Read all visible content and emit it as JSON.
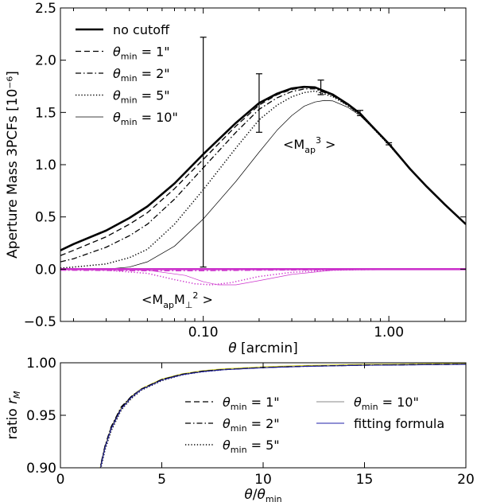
{
  "chart_data": [
    {
      "type": "line",
      "xscale": "log",
      "xlim": [
        0.017,
        2.6
      ],
      "ylim": [
        -0.5,
        2.5
      ],
      "xlabel": "θ [arcmin]",
      "ylabel": "Aperture Mass 3PCFs [10⁻⁶]",
      "xticks": [
        {
          "value": 0.1,
          "label": "0.10"
        },
        {
          "value": 1.0,
          "label": "1.00"
        }
      ],
      "yticks": [
        {
          "value": -0.5,
          "label": "−0.5"
        },
        {
          "value": 0.0,
          "label": "0.0"
        },
        {
          "value": 0.5,
          "label": "0.5"
        },
        {
          "value": 1.0,
          "label": "1.0"
        },
        {
          "value": 1.5,
          "label": "1.5"
        },
        {
          "value": 2.0,
          "label": "2.0"
        },
        {
          "value": 2.5,
          "label": "2.5"
        }
      ],
      "legend_position": "top-left",
      "legend": [
        {
          "text": "no cutoff",
          "style": "thick"
        },
        {
          "text": "θmin = 1\"",
          "style": "dashed"
        },
        {
          "text": "θmin = 2\"",
          "style": "dashdot"
        },
        {
          "text": "θmin = 5\"",
          "style": "dotted"
        },
        {
          "text": "θmin = 10\"",
          "style": "thin"
        }
      ],
      "annotations": {
        "map3": "<Map3>",
        "mapmperp": "<MapM⊥2>"
      },
      "colors": {
        "e_mode": "#000000",
        "b_mode": "#cc33cc"
      },
      "series": [
        {
          "name": "no cutoff",
          "group": "Map3",
          "style": "thick",
          "x": [
            0.017,
            0.02,
            0.03,
            0.04,
            0.05,
            0.07,
            0.1,
            0.15,
            0.2,
            0.25,
            0.3,
            0.35,
            0.4,
            0.5,
            0.6,
            0.7,
            0.8,
            1.0,
            1.3,
            1.6,
            2.0,
            2.6
          ],
          "y": [
            0.18,
            0.24,
            0.37,
            0.49,
            0.6,
            0.82,
            1.1,
            1.4,
            1.59,
            1.68,
            1.73,
            1.745,
            1.74,
            1.67,
            1.58,
            1.49,
            1.38,
            1.2,
            0.96,
            0.79,
            0.62,
            0.43
          ]
        },
        {
          "name": "θmin = 1\"",
          "group": "Map3",
          "style": "dashed",
          "x": [
            0.017,
            0.02,
            0.03,
            0.04,
            0.05,
            0.07,
            0.1,
            0.15,
            0.2,
            0.25,
            0.3,
            0.35,
            0.4,
            0.5,
            0.6,
            0.7,
            0.8,
            1.0,
            1.3,
            1.6,
            2.0,
            2.6
          ],
          "y": [
            0.13,
            0.18,
            0.31,
            0.43,
            0.54,
            0.77,
            1.05,
            1.37,
            1.57,
            1.67,
            1.72,
            1.74,
            1.735,
            1.665,
            1.575,
            1.485,
            1.38,
            1.2,
            0.96,
            0.79,
            0.62,
            0.43
          ]
        },
        {
          "name": "θmin = 2\"",
          "group": "Map3",
          "style": "dashdot",
          "x": [
            0.017,
            0.02,
            0.03,
            0.04,
            0.05,
            0.07,
            0.1,
            0.15,
            0.2,
            0.25,
            0.3,
            0.35,
            0.4,
            0.5,
            0.6,
            0.7,
            0.8,
            1.0,
            1.3,
            1.6,
            2.0,
            2.6
          ],
          "y": [
            0.07,
            0.1,
            0.21,
            0.32,
            0.43,
            0.67,
            0.97,
            1.31,
            1.53,
            1.64,
            1.7,
            1.725,
            1.725,
            1.66,
            1.57,
            1.48,
            1.375,
            1.2,
            0.96,
            0.79,
            0.62,
            0.43
          ]
        },
        {
          "name": "θmin = 5\"",
          "group": "Map3",
          "style": "dotted",
          "x": [
            0.017,
            0.02,
            0.03,
            0.04,
            0.05,
            0.07,
            0.1,
            0.15,
            0.2,
            0.25,
            0.3,
            0.35,
            0.4,
            0.5,
            0.6,
            0.7,
            0.8,
            1.0,
            1.3,
            1.6,
            2.0,
            2.6
          ],
          "y": [
            0.01,
            0.02,
            0.05,
            0.11,
            0.19,
            0.43,
            0.76,
            1.16,
            1.43,
            1.57,
            1.65,
            1.69,
            1.705,
            1.65,
            1.565,
            1.475,
            1.37,
            1.19,
            0.96,
            0.79,
            0.62,
            0.43
          ]
        },
        {
          "name": "θmin = 10\"",
          "group": "Map3",
          "style": "thin",
          "x": [
            0.017,
            0.02,
            0.03,
            0.04,
            0.05,
            0.07,
            0.1,
            0.15,
            0.2,
            0.25,
            0.3,
            0.35,
            0.4,
            0.45,
            0.5,
            0.6,
            0.7,
            0.8,
            1.0,
            1.3,
            1.6,
            2.0,
            2.6
          ],
          "y": [
            0.0,
            0.0,
            0.0,
            0.02,
            0.07,
            0.22,
            0.48,
            0.84,
            1.12,
            1.33,
            1.47,
            1.56,
            1.6,
            1.615,
            1.61,
            1.55,
            1.47,
            1.37,
            1.19,
            0.96,
            0.79,
            0.62,
            0.43
          ]
        },
        {
          "name": "θmin = 5\"",
          "group": "MapMperp2",
          "style": "dotted",
          "x": [
            0.017,
            0.03,
            0.05,
            0.07,
            0.09,
            0.11,
            0.14,
            0.2,
            0.3,
            0.5,
            1.0,
            2.6
          ],
          "y": [
            0.0,
            -0.01,
            -0.04,
            -0.1,
            -0.14,
            -0.15,
            -0.13,
            -0.07,
            -0.03,
            -0.01,
            0.0,
            0.0
          ]
        },
        {
          "name": "θmin = 10\"",
          "group": "MapMperp2",
          "style": "thin",
          "x": [
            0.017,
            0.05,
            0.08,
            0.1,
            0.12,
            0.15,
            0.2,
            0.3,
            0.5,
            1.0,
            2.6
          ],
          "y": [
            0.0,
            -0.01,
            -0.06,
            -0.12,
            -0.15,
            -0.15,
            -0.11,
            -0.05,
            -0.01,
            0.0,
            0.0
          ]
        },
        {
          "name": "no cutoff",
          "group": "MapMperp2",
          "style": "thick",
          "x": [
            0.017,
            2.6
          ],
          "y": [
            0.0,
            0.0
          ]
        },
        {
          "name": "θmin = 2\"",
          "group": "MapMperp2",
          "style": "dashdot",
          "x": [
            0.017,
            0.05,
            0.1,
            0.2,
            2.6
          ],
          "y": [
            -0.01,
            -0.015,
            -0.015,
            -0.01,
            0.0
          ]
        }
      ],
      "error_bars": [
        {
          "x": 0.1,
          "y": 1.1,
          "low": 0.02,
          "high": 2.22
        },
        {
          "x": 0.2,
          "y": 1.59,
          "low": 1.31,
          "high": 1.87
        },
        {
          "x": 0.43,
          "y": 1.74,
          "low": 1.67,
          "high": 1.81
        },
        {
          "x": 0.7,
          "y": 1.49,
          "low": 1.47,
          "high": 1.52
        },
        {
          "x": 1.0,
          "y": 1.2,
          "low": 1.19,
          "high": 1.21
        }
      ]
    },
    {
      "type": "line",
      "xlim": [
        0,
        20
      ],
      "ylim": [
        0.9,
        1.0
      ],
      "xlabel": "θ/θmin",
      "ylabel": "ratio rM",
      "xticks": [
        {
          "value": 0,
          "label": "0"
        },
        {
          "value": 5,
          "label": "5"
        },
        {
          "value": 10,
          "label": "10"
        },
        {
          "value": 15,
          "label": "15"
        },
        {
          "value": 20,
          "label": "20"
        }
      ],
      "yticks": [
        {
          "value": 0.9,
          "label": "0.90"
        },
        {
          "value": 0.95,
          "label": "0.95"
        },
        {
          "value": 1.0,
          "label": "1.00"
        }
      ],
      "legend_position": "center-right",
      "legend": [
        {
          "text": "θmin = 1\"",
          "style": "dashed"
        },
        {
          "text": "θmin = 2\"",
          "style": "dashdot"
        },
        {
          "text": "θmin = 5\"",
          "style": "dotted"
        },
        {
          "text": "θmin = 10\"",
          "style": "thin_gray"
        },
        {
          "text": "fitting formula",
          "style": "blue"
        }
      ],
      "colors": {
        "fit": "#2222aa",
        "data": "#000000",
        "gray": "#888888",
        "yellow": "#cccc00"
      },
      "series": [
        {
          "name": "θmin = 1\"",
          "style": "dashed",
          "x": [
            1.9,
            2.0,
            2.2,
            2.5,
            3.0,
            3.5,
            4.0,
            5.0,
            6.0,
            7.0,
            8.0,
            10.0,
            12.0,
            15.0,
            20.0
          ],
          "y": [
            0.895,
            0.903,
            0.92,
            0.938,
            0.957,
            0.968,
            0.975,
            0.984,
            0.989,
            0.992,
            0.9935,
            0.9955,
            0.9967,
            0.9978,
            0.9987
          ]
        },
        {
          "name": "θmin = 2\"",
          "style": "dashdot",
          "x": [
            1.9,
            2.0,
            2.2,
            2.5,
            3.0,
            3.5,
            4.0,
            5.0,
            6.0,
            7.0,
            8.0,
            10.0,
            12.0,
            15.0,
            20.0
          ],
          "y": [
            0.895,
            0.904,
            0.921,
            0.939,
            0.958,
            0.968,
            0.975,
            0.984,
            0.9888,
            0.9918,
            0.9934,
            0.9954,
            0.9966,
            0.9977,
            0.9986
          ]
        },
        {
          "name": "θmin = 5\"",
          "style": "dotted",
          "x": [
            1.9,
            2.0,
            2.2,
            2.5,
            3.0,
            3.5,
            4.0,
            5.0,
            6.0,
            7.0,
            8.0
          ],
          "y": [
            0.893,
            0.9,
            0.917,
            0.935,
            0.955,
            0.966,
            0.974,
            0.983,
            0.9885,
            0.9915,
            0.9933
          ]
        },
        {
          "name": "θmin = 10\"",
          "style": "thin_gray",
          "x": [
            1.9,
            2.0,
            2.2,
            2.5,
            3.0,
            3.5,
            4.0
          ],
          "y": [
            0.894,
            0.902,
            0.919,
            0.937,
            0.956,
            0.967,
            0.975
          ]
        },
        {
          "name": "fitting formula",
          "style": "blue",
          "x": [
            1.9,
            2.0,
            2.2,
            2.5,
            3.0,
            3.5,
            4.0,
            5.0,
            6.0,
            7.0,
            8.0,
            10.0,
            12.0,
            15.0,
            20.0
          ],
          "y": [
            0.894,
            0.902,
            0.919,
            0.937,
            0.956,
            0.967,
            0.9745,
            0.9835,
            0.9885,
            0.9915,
            0.9933,
            0.9953,
            0.9965,
            0.9976,
            0.9985
          ]
        }
      ]
    }
  ]
}
